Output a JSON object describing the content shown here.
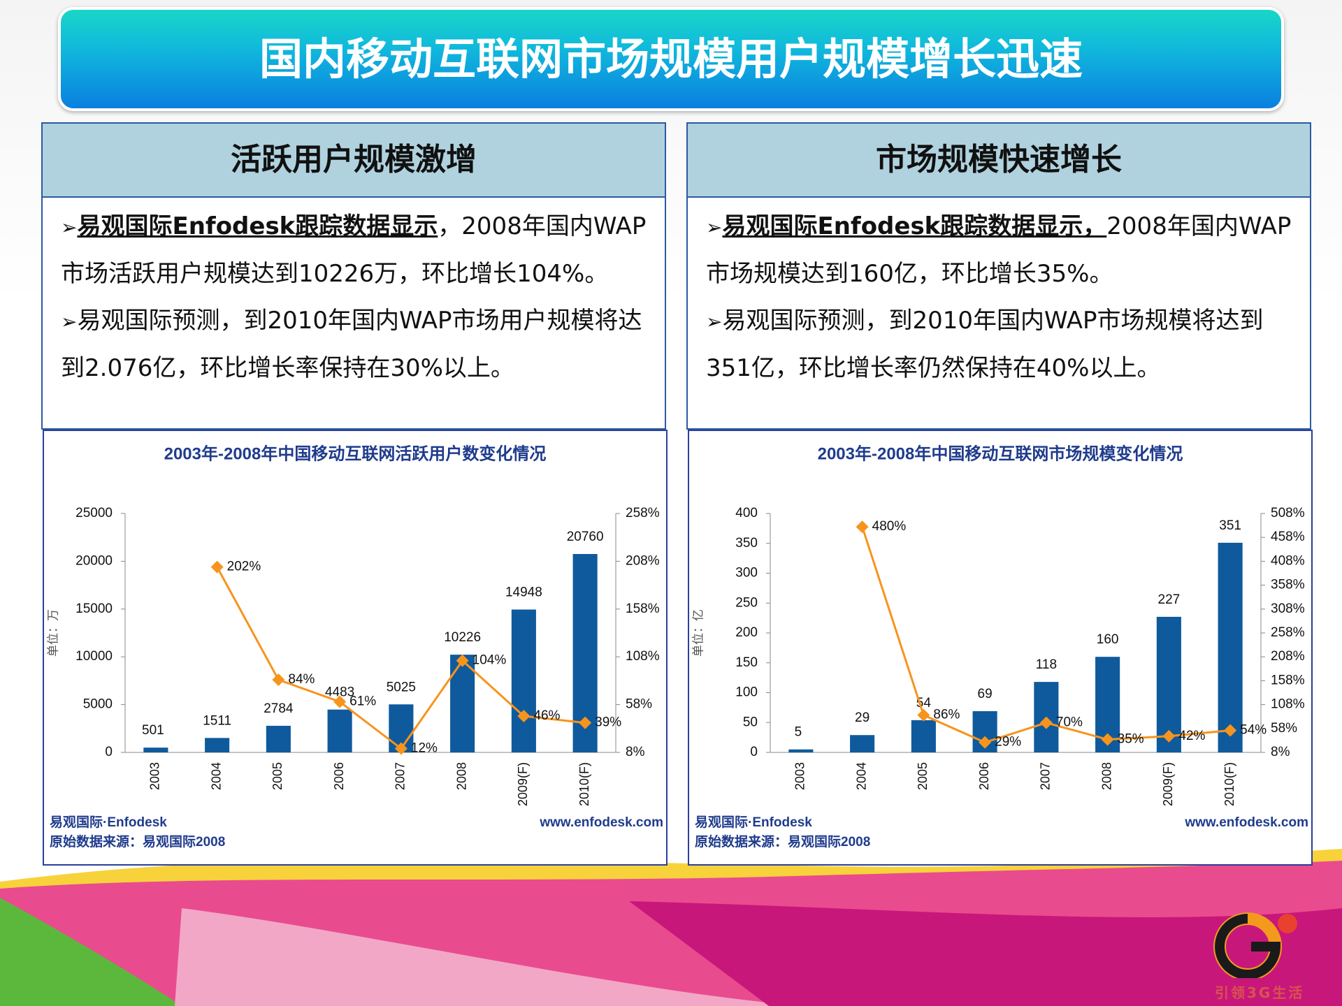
{
  "title": "国内移动互联网市场规模用户规模增长迅速",
  "panels": [
    {
      "heading": "活跃用户规模激增",
      "paragraphs": [
        {
          "lead": "易观国际Enfodesk跟踪数据显示",
          "text": "，2008年国内WAP市场活跃用户规模达到10226万，环比增长104%。"
        },
        {
          "text": "易观国际预测，到2010年国内WAP市场用户规模将达到2.076亿，环比增长率保持在30%以上。"
        }
      ]
    },
    {
      "heading": "市场规模快速增长",
      "paragraphs": [
        {
          "lead": "易观国际Enfodesk跟踪数据显示，",
          "text": "2008年国内WAP市场规模达到160亿，环比增长35%。"
        },
        {
          "text": "易观国际预测，到2010年国内WAP市场规模将达到351亿，环比增长率仍然保持在40%以上。"
        }
      ]
    }
  ],
  "chart_data": [
    {
      "type": "bar-line",
      "title": "2003年-2008年中国移动互联网活跃用户数变化情况",
      "y_label": "单位：万",
      "categories": [
        "2003",
        "2004",
        "2005",
        "2006",
        "2007",
        "2008",
        "2009(F)",
        "2010(F)"
      ],
      "series": [
        {
          "type": "bar",
          "color": "#0f5a9c",
          "values": [
            501,
            1511,
            2784,
            4483,
            5025,
            10226,
            14948,
            20760
          ]
        },
        {
          "type": "line",
          "axis": "y2",
          "color": "#f7941d",
          "values": [
            null,
            202,
            84,
            61,
            12,
            104,
            46,
            39
          ],
          "value_labels": [
            null,
            "202%",
            "84%",
            "61%",
            "12%",
            "104%",
            "46%",
            "39%"
          ]
        }
      ],
      "ylim": [
        0,
        25000
      ],
      "yticks": [
        0,
        5000,
        10000,
        15000,
        20000,
        25000
      ],
      "y2lim": [
        8,
        258
      ],
      "y2ticks": [
        {
          "value": 8,
          "label": "8%"
        },
        {
          "value": 58,
          "label": "58%"
        },
        {
          "value": 108,
          "label": "108%"
        },
        {
          "value": 158,
          "label": "158%"
        },
        {
          "value": 208,
          "label": "208%"
        },
        {
          "value": 258,
          "label": "258%"
        }
      ],
      "source_left": "易观国际·Enfodesk",
      "source_right": "www.enfodesk.com",
      "source_note": "原始数据来源：易观国际2008"
    },
    {
      "type": "bar-line",
      "title": "2003年-2008年中国移动互联网市场规模变化情况",
      "y_label": "单位：亿",
      "categories": [
        "2003",
        "2004",
        "2005",
        "2006",
        "2007",
        "2008",
        "2009(F)",
        "2010(F)"
      ],
      "series": [
        {
          "type": "bar",
          "color": "#0f5a9c",
          "values": [
            5,
            29,
            54,
            69,
            118,
            160,
            227,
            351
          ]
        },
        {
          "type": "line",
          "axis": "y2",
          "color": "#f7941d",
          "values": [
            null,
            480,
            86,
            29,
            70,
            35,
            42,
            54
          ],
          "value_labels": [
            null,
            "480%",
            "86%",
            "29%",
            "70%",
            "35%",
            "42%",
            "54%"
          ]
        }
      ],
      "ylim": [
        0,
        400
      ],
      "yticks": [
        0,
        50,
        100,
        150,
        200,
        250,
        300,
        350,
        400
      ],
      "y2lim": [
        8,
        508
      ],
      "y2ticks": [
        {
          "value": 8,
          "label": "8%"
        },
        {
          "value": 58,
          "label": "58%"
        },
        {
          "value": 108,
          "label": "108%"
        },
        {
          "value": 158,
          "label": "158%"
        },
        {
          "value": 208,
          "label": "208%"
        },
        {
          "value": 258,
          "label": "258%"
        },
        {
          "value": 308,
          "label": "308%"
        },
        {
          "value": 358,
          "label": "358%"
        },
        {
          "value": 408,
          "label": "408%"
        },
        {
          "value": 458,
          "label": "458%"
        },
        {
          "value": 508,
          "label": "508%"
        }
      ],
      "source_left": "易观国际·Enfodesk",
      "source_right": "www.enfodesk.com",
      "source_note": "原始数据来源：易观国际2008"
    }
  ],
  "logo_text": "引领3G生活"
}
